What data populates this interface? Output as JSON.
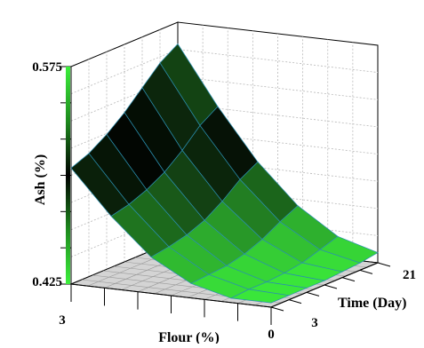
{
  "chart_data": {
    "type": "surface",
    "zlabel": "Ash (%)",
    "xlabel": "Flour (%)",
    "ylabel": "Time (Day)",
    "zlim": [
      0.425,
      0.575
    ],
    "z_tick_labels": [
      "0.425",
      "0.575"
    ],
    "x_tick_labels": [
      "3",
      "0"
    ],
    "y_tick_labels": [
      "3",
      "21"
    ],
    "flour_range": [
      3,
      0
    ],
    "time_range": [
      3,
      21
    ],
    "surface": {
      "flour": [
        3,
        2.4,
        1.8,
        1.2,
        0.6,
        0
      ],
      "time": [
        21,
        18,
        15,
        12,
        9,
        6,
        3
      ],
      "ash": [
        [
          0.56,
          0.52,
          0.485,
          0.458,
          0.44,
          0.432
        ],
        [
          0.552,
          0.512,
          0.478,
          0.452,
          0.436,
          0.43
        ],
        [
          0.54,
          0.5,
          0.468,
          0.445,
          0.432,
          0.429
        ],
        [
          0.528,
          0.49,
          0.46,
          0.44,
          0.43,
          0.428
        ],
        [
          0.518,
          0.483,
          0.455,
          0.437,
          0.429,
          0.428
        ],
        [
          0.51,
          0.478,
          0.452,
          0.436,
          0.429,
          0.428
        ],
        [
          0.505,
          0.475,
          0.45,
          0.435,
          0.428,
          0.428
        ]
      ]
    },
    "colormap": [
      "#3cf03c",
      "#2fb32f",
      "#1d6b1d",
      "#0d2a0d",
      "#000000"
    ],
    "grid": true
  }
}
